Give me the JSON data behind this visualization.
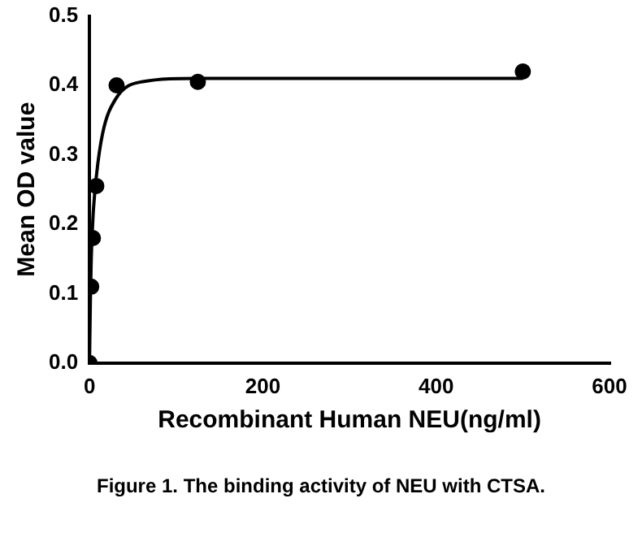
{
  "chart_data": {
    "type": "scatter",
    "xlabel": "Recombinant Human NEU(ng/ml)",
    "ylabel": "Mean OD value",
    "annotations": [
      "Figure 1. The binding activity of NEU with CTSA."
    ],
    "series": [
      {
        "color": "#000000",
        "marker": "circle",
        "x": [
          0,
          1.95,
          3.9,
          7.8,
          31.25,
          125,
          500
        ],
        "values": [
          0,
          0.11,
          0.18,
          0.255,
          0.4,
          0.405,
          0.42
        ]
      },
      {
        "type": "line",
        "color": "#000000",
        "marker": "none",
        "x": [
          0,
          1,
          2,
          4,
          8,
          15,
          30,
          60,
          125,
          250,
          500
        ],
        "values": [
          0,
          0.09,
          0.15,
          0.21,
          0.27,
          0.33,
          0.38,
          0.405,
          0.41,
          0.41,
          0.41
        ]
      }
    ],
    "xlim": [
      0,
      600
    ],
    "xticks": [
      0,
      200,
      400,
      600
    ],
    "ylim": [
      0,
      0.5
    ],
    "yticks": [
      {
        "value": 0,
        "label": "0.0"
      },
      0.1,
      0.2,
      0.3,
      0.4,
      0.5
    ],
    "grid": false,
    "legend": false
  }
}
